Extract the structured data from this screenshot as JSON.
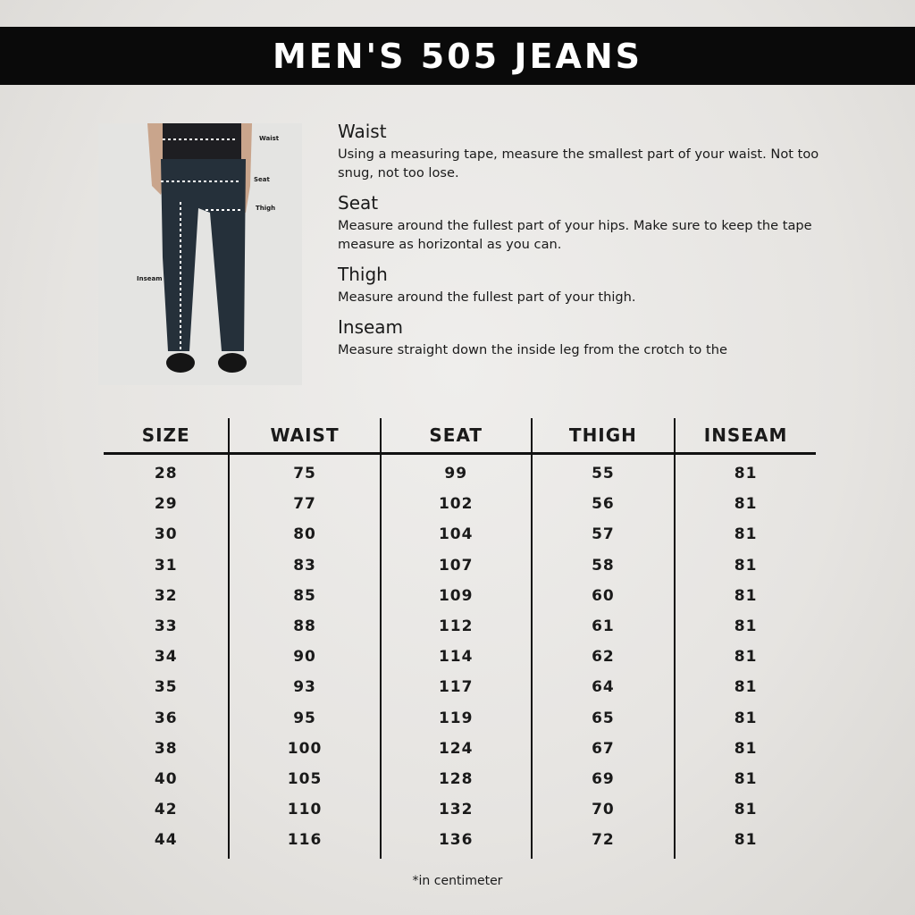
{
  "title": "MEN'S 505 JEANS",
  "photo": {
    "labels": {
      "waist": "Waist",
      "seat": "Seat",
      "thigh": "Thigh",
      "inseam": "Inseam"
    }
  },
  "guide": [
    {
      "heading": "Waist",
      "text": "Using a measuring tape, measure the smallest part of your waist. Not too snug, not too lose."
    },
    {
      "heading": "Seat",
      "text": "Measure around the fullest part of your hips. Make sure to keep the tape measure as horizontal as you can."
    },
    {
      "heading": "Thigh",
      "text": "Measure around the fullest part of your thigh."
    },
    {
      "heading": "Inseam",
      "text": "Measure straight down the inside leg from the crotch to the"
    }
  ],
  "table": {
    "headers": [
      "SIZE",
      "WAIST",
      "SEAT",
      "THIGH",
      "INSEAM"
    ],
    "rows": [
      [
        "28",
        "75",
        "99",
        "55",
        "81"
      ],
      [
        "29",
        "77",
        "102",
        "56",
        "81"
      ],
      [
        "30",
        "80",
        "104",
        "57",
        "81"
      ],
      [
        "31",
        "83",
        "107",
        "58",
        "81"
      ],
      [
        "32",
        "85",
        "109",
        "60",
        "81"
      ],
      [
        "33",
        "88",
        "112",
        "61",
        "81"
      ],
      [
        "34",
        "90",
        "114",
        "62",
        "81"
      ],
      [
        "35",
        "93",
        "117",
        "64",
        "81"
      ],
      [
        "36",
        "95",
        "119",
        "65",
        "81"
      ],
      [
        "38",
        "100",
        "124",
        "67",
        "81"
      ],
      [
        "40",
        "105",
        "128",
        "69",
        "81"
      ],
      [
        "42",
        "110",
        "132",
        "70",
        "81"
      ],
      [
        "44",
        "116",
        "136",
        "72",
        "81"
      ]
    ]
  },
  "footnote": "*in centimeter"
}
